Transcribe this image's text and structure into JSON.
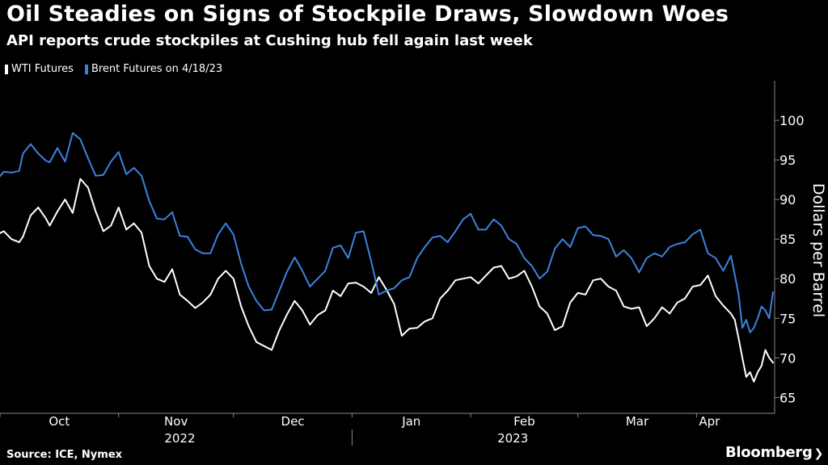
{
  "title": "Oil Steadies on Signs of Stockpile Draws, Slowdown Woes",
  "subtitle": "API reports crude stockpiles at Cushing hub fell again last week",
  "source": "Source: ICE, Nymex",
  "brand": "Bloomberg",
  "colors": {
    "wti": "#ffffff",
    "brent": "#3b82e0",
    "grid": "#555555"
  },
  "chart_data": {
    "type": "line",
    "ylabel": "Dollars per Barrel",
    "ylim": [
      63,
      105
    ],
    "yticks": [
      65,
      70,
      75,
      80,
      85,
      90,
      95,
      100
    ],
    "xlim": [
      "2022-10-01",
      "2023-04-21"
    ],
    "month_ticks": [
      {
        "label": "Oct",
        "date": "2022-10-01"
      },
      {
        "label": "Nov",
        "date": "2022-11-01"
      },
      {
        "label": "Dec",
        "date": "2022-12-01"
      },
      {
        "label": "Jan",
        "date": "2023-01-01"
      },
      {
        "label": "Feb",
        "date": "2023-02-01"
      },
      {
        "label": "Mar",
        "date": "2023-03-01"
      },
      {
        "label": "Apr",
        "date": "2023-04-01"
      }
    ],
    "year_labels": [
      {
        "label": "2022",
        "center": "2022-11-17"
      },
      {
        "label": "2023",
        "center": "2023-02-12"
      }
    ],
    "year_divider": "2023-01-01",
    "series": [
      {
        "name": "WTI Futures",
        "color": "#ffffff",
        "points": [
          [
            "2022-09-30",
            85.5
          ],
          [
            "2022-10-02",
            86.0
          ],
          [
            "2022-10-04",
            85.0
          ],
          [
            "2022-10-06",
            84.6
          ],
          [
            "2022-10-07",
            85.3
          ],
          [
            "2022-10-09",
            88.0
          ],
          [
            "2022-10-11",
            89.0
          ],
          [
            "2022-10-13",
            87.6
          ],
          [
            "2022-10-14",
            86.7
          ],
          [
            "2022-10-16",
            88.5
          ],
          [
            "2022-10-18",
            90.0
          ],
          [
            "2022-10-20",
            88.3
          ],
          [
            "2022-10-22",
            92.6
          ],
          [
            "2022-10-24",
            91.5
          ],
          [
            "2022-10-26",
            88.5
          ],
          [
            "2022-10-28",
            86.0
          ],
          [
            "2022-10-30",
            86.7
          ],
          [
            "2022-11-01",
            89.0
          ],
          [
            "2022-11-03",
            86.2
          ],
          [
            "2022-11-05",
            87.0
          ],
          [
            "2022-11-07",
            85.8
          ],
          [
            "2022-11-09",
            81.6
          ],
          [
            "2022-11-11",
            80.0
          ],
          [
            "2022-11-13",
            79.6
          ],
          [
            "2022-11-15",
            81.2
          ],
          [
            "2022-11-17",
            78.0
          ],
          [
            "2022-11-19",
            77.2
          ],
          [
            "2022-11-21",
            76.3
          ],
          [
            "2022-11-23",
            77.0
          ],
          [
            "2022-11-25",
            78.0
          ],
          [
            "2022-11-27",
            80.0
          ],
          [
            "2022-11-29",
            81.0
          ],
          [
            "2022-12-01",
            80.0
          ],
          [
            "2022-12-03",
            76.5
          ],
          [
            "2022-12-05",
            74.0
          ],
          [
            "2022-12-07",
            72.0
          ],
          [
            "2022-12-09",
            71.5
          ],
          [
            "2022-12-11",
            71.0
          ],
          [
            "2022-12-13",
            73.5
          ],
          [
            "2022-12-15",
            75.5
          ],
          [
            "2022-12-17",
            77.2
          ],
          [
            "2022-12-19",
            76.0
          ],
          [
            "2022-12-21",
            74.2
          ],
          [
            "2022-12-23",
            75.4
          ],
          [
            "2022-12-25",
            76.0
          ],
          [
            "2022-12-27",
            78.5
          ],
          [
            "2022-12-29",
            77.8
          ],
          [
            "2022-12-31",
            79.4
          ],
          [
            "2023-01-02",
            79.5
          ],
          [
            "2023-01-04",
            79.0
          ],
          [
            "2023-01-06",
            78.2
          ],
          [
            "2023-01-08",
            80.2
          ],
          [
            "2023-01-10",
            78.6
          ],
          [
            "2023-01-12",
            76.8
          ],
          [
            "2023-01-14",
            72.8
          ],
          [
            "2023-01-16",
            73.7
          ],
          [
            "2023-01-18",
            73.8
          ],
          [
            "2023-01-20",
            74.6
          ],
          [
            "2023-01-22",
            75.0
          ],
          [
            "2023-01-24",
            77.5
          ],
          [
            "2023-01-26",
            78.5
          ],
          [
            "2023-01-28",
            79.8
          ],
          [
            "2023-01-30",
            80.0
          ],
          [
            "2023-02-01",
            80.2
          ],
          [
            "2023-02-03",
            79.4
          ],
          [
            "2023-02-05",
            80.4
          ],
          [
            "2023-02-07",
            81.4
          ],
          [
            "2023-02-09",
            81.6
          ],
          [
            "2023-02-11",
            80.0
          ],
          [
            "2023-02-13",
            80.3
          ],
          [
            "2023-02-15",
            81.0
          ],
          [
            "2023-02-17",
            79.0
          ],
          [
            "2023-02-19",
            76.5
          ],
          [
            "2023-02-21",
            75.6
          ],
          [
            "2023-02-23",
            73.5
          ],
          [
            "2023-02-25",
            74.0
          ],
          [
            "2023-02-27",
            77.0
          ],
          [
            "2023-03-01",
            78.2
          ],
          [
            "2023-03-03",
            78.0
          ],
          [
            "2023-03-05",
            79.8
          ],
          [
            "2023-03-07",
            80.0
          ],
          [
            "2023-03-09",
            79.0
          ],
          [
            "2023-03-11",
            78.5
          ],
          [
            "2023-03-13",
            76.5
          ],
          [
            "2023-03-15",
            76.2
          ],
          [
            "2023-03-17",
            76.4
          ],
          [
            "2023-03-19",
            74.0
          ],
          [
            "2023-03-21",
            75.0
          ],
          [
            "2023-03-23",
            76.4
          ],
          [
            "2023-03-25",
            75.6
          ],
          [
            "2023-03-27",
            77.0
          ],
          [
            "2023-03-29",
            77.5
          ],
          [
            "2023-03-31",
            79.0
          ],
          [
            "2023-04-02",
            79.2
          ],
          [
            "2023-04-04",
            80.4
          ],
          [
            "2023-04-06",
            77.8
          ],
          [
            "2023-04-08",
            76.6
          ],
          [
            "2023-04-10",
            75.6
          ],
          [
            "2023-04-11",
            74.8
          ],
          [
            "2023-04-12",
            72.5
          ],
          [
            "2023-04-13",
            70.0
          ],
          [
            "2023-04-14",
            67.6
          ],
          [
            "2023-04-15",
            68.2
          ],
          [
            "2023-04-16",
            67.0
          ],
          [
            "2023-04-17",
            68.2
          ],
          [
            "2023-04-18",
            69.0
          ],
          [
            "2023-04-19",
            71.0
          ],
          [
            "2023-04-20",
            70.0
          ],
          [
            "2023-04-21",
            69.4
          ]
        ]
      },
      {
        "name": "Brent Futures on 4/18/23",
        "color": "#3b82e0",
        "points": [
          [
            "2022-09-30",
            92.4
          ],
          [
            "2022-10-02",
            93.5
          ],
          [
            "2022-10-04",
            93.4
          ],
          [
            "2022-10-06",
            93.6
          ],
          [
            "2022-10-07",
            95.8
          ],
          [
            "2022-10-09",
            97.0
          ],
          [
            "2022-10-11",
            95.8
          ],
          [
            "2022-10-13",
            94.9
          ],
          [
            "2022-10-14",
            94.7
          ],
          [
            "2022-10-16",
            96.5
          ],
          [
            "2022-10-18",
            94.8
          ],
          [
            "2022-10-20",
            98.4
          ],
          [
            "2022-10-22",
            97.6
          ],
          [
            "2022-10-24",
            95.2
          ],
          [
            "2022-10-26",
            93.0
          ],
          [
            "2022-10-28",
            93.1
          ],
          [
            "2022-10-30",
            94.8
          ],
          [
            "2022-11-01",
            96.0
          ],
          [
            "2022-11-03",
            93.2
          ],
          [
            "2022-11-05",
            94.0
          ],
          [
            "2022-11-07",
            93.0
          ],
          [
            "2022-11-09",
            89.8
          ],
          [
            "2022-11-11",
            87.6
          ],
          [
            "2022-11-13",
            87.5
          ],
          [
            "2022-11-15",
            88.4
          ],
          [
            "2022-11-17",
            85.4
          ],
          [
            "2022-11-19",
            85.3
          ],
          [
            "2022-11-21",
            83.7
          ],
          [
            "2022-11-23",
            83.2
          ],
          [
            "2022-11-25",
            83.2
          ],
          [
            "2022-11-27",
            85.6
          ],
          [
            "2022-11-29",
            87.0
          ],
          [
            "2022-12-01",
            85.6
          ],
          [
            "2022-12-03",
            81.9
          ],
          [
            "2022-12-05",
            79.0
          ],
          [
            "2022-12-07",
            77.2
          ],
          [
            "2022-12-09",
            76.0
          ],
          [
            "2022-12-11",
            76.1
          ],
          [
            "2022-12-13",
            78.5
          ],
          [
            "2022-12-15",
            80.9
          ],
          [
            "2022-12-17",
            82.7
          ],
          [
            "2022-12-19",
            81.0
          ],
          [
            "2022-12-21",
            79.0
          ],
          [
            "2022-12-23",
            80.0
          ],
          [
            "2022-12-25",
            81.0
          ],
          [
            "2022-12-27",
            83.9
          ],
          [
            "2022-12-29",
            84.2
          ],
          [
            "2022-12-31",
            82.6
          ],
          [
            "2023-01-02",
            85.8
          ],
          [
            "2023-01-04",
            86.0
          ],
          [
            "2023-01-06",
            82.2
          ],
          [
            "2023-01-08",
            78.0
          ],
          [
            "2023-01-10",
            78.5
          ],
          [
            "2023-01-12",
            78.8
          ],
          [
            "2023-01-14",
            79.8
          ],
          [
            "2023-01-16",
            80.2
          ],
          [
            "2023-01-18",
            82.6
          ],
          [
            "2023-01-20",
            84.0
          ],
          [
            "2023-01-22",
            85.2
          ],
          [
            "2023-01-24",
            85.4
          ],
          [
            "2023-01-26",
            84.6
          ],
          [
            "2023-01-28",
            86.0
          ],
          [
            "2023-01-30",
            87.5
          ],
          [
            "2023-02-01",
            88.2
          ],
          [
            "2023-02-03",
            86.2
          ],
          [
            "2023-02-05",
            86.2
          ],
          [
            "2023-02-07",
            87.5
          ],
          [
            "2023-02-09",
            86.7
          ],
          [
            "2023-02-11",
            85.0
          ],
          [
            "2023-02-13",
            84.4
          ],
          [
            "2023-02-15",
            82.6
          ],
          [
            "2023-02-17",
            81.6
          ],
          [
            "2023-02-19",
            80.0
          ],
          [
            "2023-02-21",
            80.9
          ],
          [
            "2023-02-23",
            83.8
          ],
          [
            "2023-02-25",
            85.0
          ],
          [
            "2023-02-27",
            84.0
          ],
          [
            "2023-03-01",
            86.4
          ],
          [
            "2023-03-03",
            86.6
          ],
          [
            "2023-03-05",
            85.5
          ],
          [
            "2023-03-07",
            85.4
          ],
          [
            "2023-03-09",
            85.0
          ],
          [
            "2023-03-11",
            82.8
          ],
          [
            "2023-03-13",
            83.6
          ],
          [
            "2023-03-15",
            82.6
          ],
          [
            "2023-03-17",
            80.8
          ],
          [
            "2023-03-19",
            82.6
          ],
          [
            "2023-03-21",
            83.2
          ],
          [
            "2023-03-23",
            82.8
          ],
          [
            "2023-03-25",
            84.0
          ],
          [
            "2023-03-27",
            84.4
          ],
          [
            "2023-03-29",
            84.6
          ],
          [
            "2023-03-31",
            85.6
          ],
          [
            "2023-04-02",
            86.2
          ],
          [
            "2023-04-04",
            83.2
          ],
          [
            "2023-04-06",
            82.6
          ],
          [
            "2023-04-08",
            81.0
          ],
          [
            "2023-04-10",
            82.9
          ],
          [
            "2023-04-11",
            80.5
          ],
          [
            "2023-04-12",
            78.0
          ],
          [
            "2023-04-13",
            73.8
          ],
          [
            "2023-04-14",
            74.8
          ],
          [
            "2023-04-15",
            73.2
          ],
          [
            "2023-04-16",
            73.8
          ],
          [
            "2023-04-17",
            75.0
          ],
          [
            "2023-04-18",
            76.5
          ],
          [
            "2023-04-19",
            76.0
          ],
          [
            "2023-04-20",
            75.0
          ],
          [
            "2023-04-21",
            78.3
          ]
        ]
      }
    ]
  }
}
